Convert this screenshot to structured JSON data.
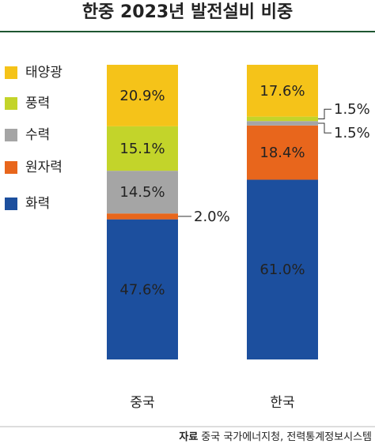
{
  "chart_data": {
    "type": "stacked_bar",
    "title": "한중 2023년 발전설비 비중",
    "categories": [
      "중국",
      "한국"
    ],
    "series": [
      {
        "name": "태양광",
        "color": "#f5c319",
        "values": [
          20.9,
          17.6
        ],
        "value_labels": [
          "20.9%",
          "17.6%"
        ]
      },
      {
        "name": "풍력",
        "color": "#c3d42a",
        "values": [
          15.1,
          1.5
        ],
        "value_labels": [
          "15.1%",
          "1.5%"
        ]
      },
      {
        "name": "수력",
        "color": "#a5a5a5",
        "values": [
          14.5,
          1.5
        ],
        "value_labels": [
          "14.5%",
          "1.5%"
        ]
      },
      {
        "name": "원자력",
        "color": "#e8661c",
        "values": [
          2.0,
          18.4
        ],
        "value_labels": [
          "2.0%",
          "18.4%"
        ]
      },
      {
        "name": "화력",
        "color": "#1c4f9e",
        "values": [
          47.6,
          61.0
        ],
        "value_labels": [
          "47.6%",
          "61.0%"
        ]
      }
    ],
    "source_label": "자료",
    "source_text": "중국 국가에너지청, 전력통계정보시스템"
  }
}
